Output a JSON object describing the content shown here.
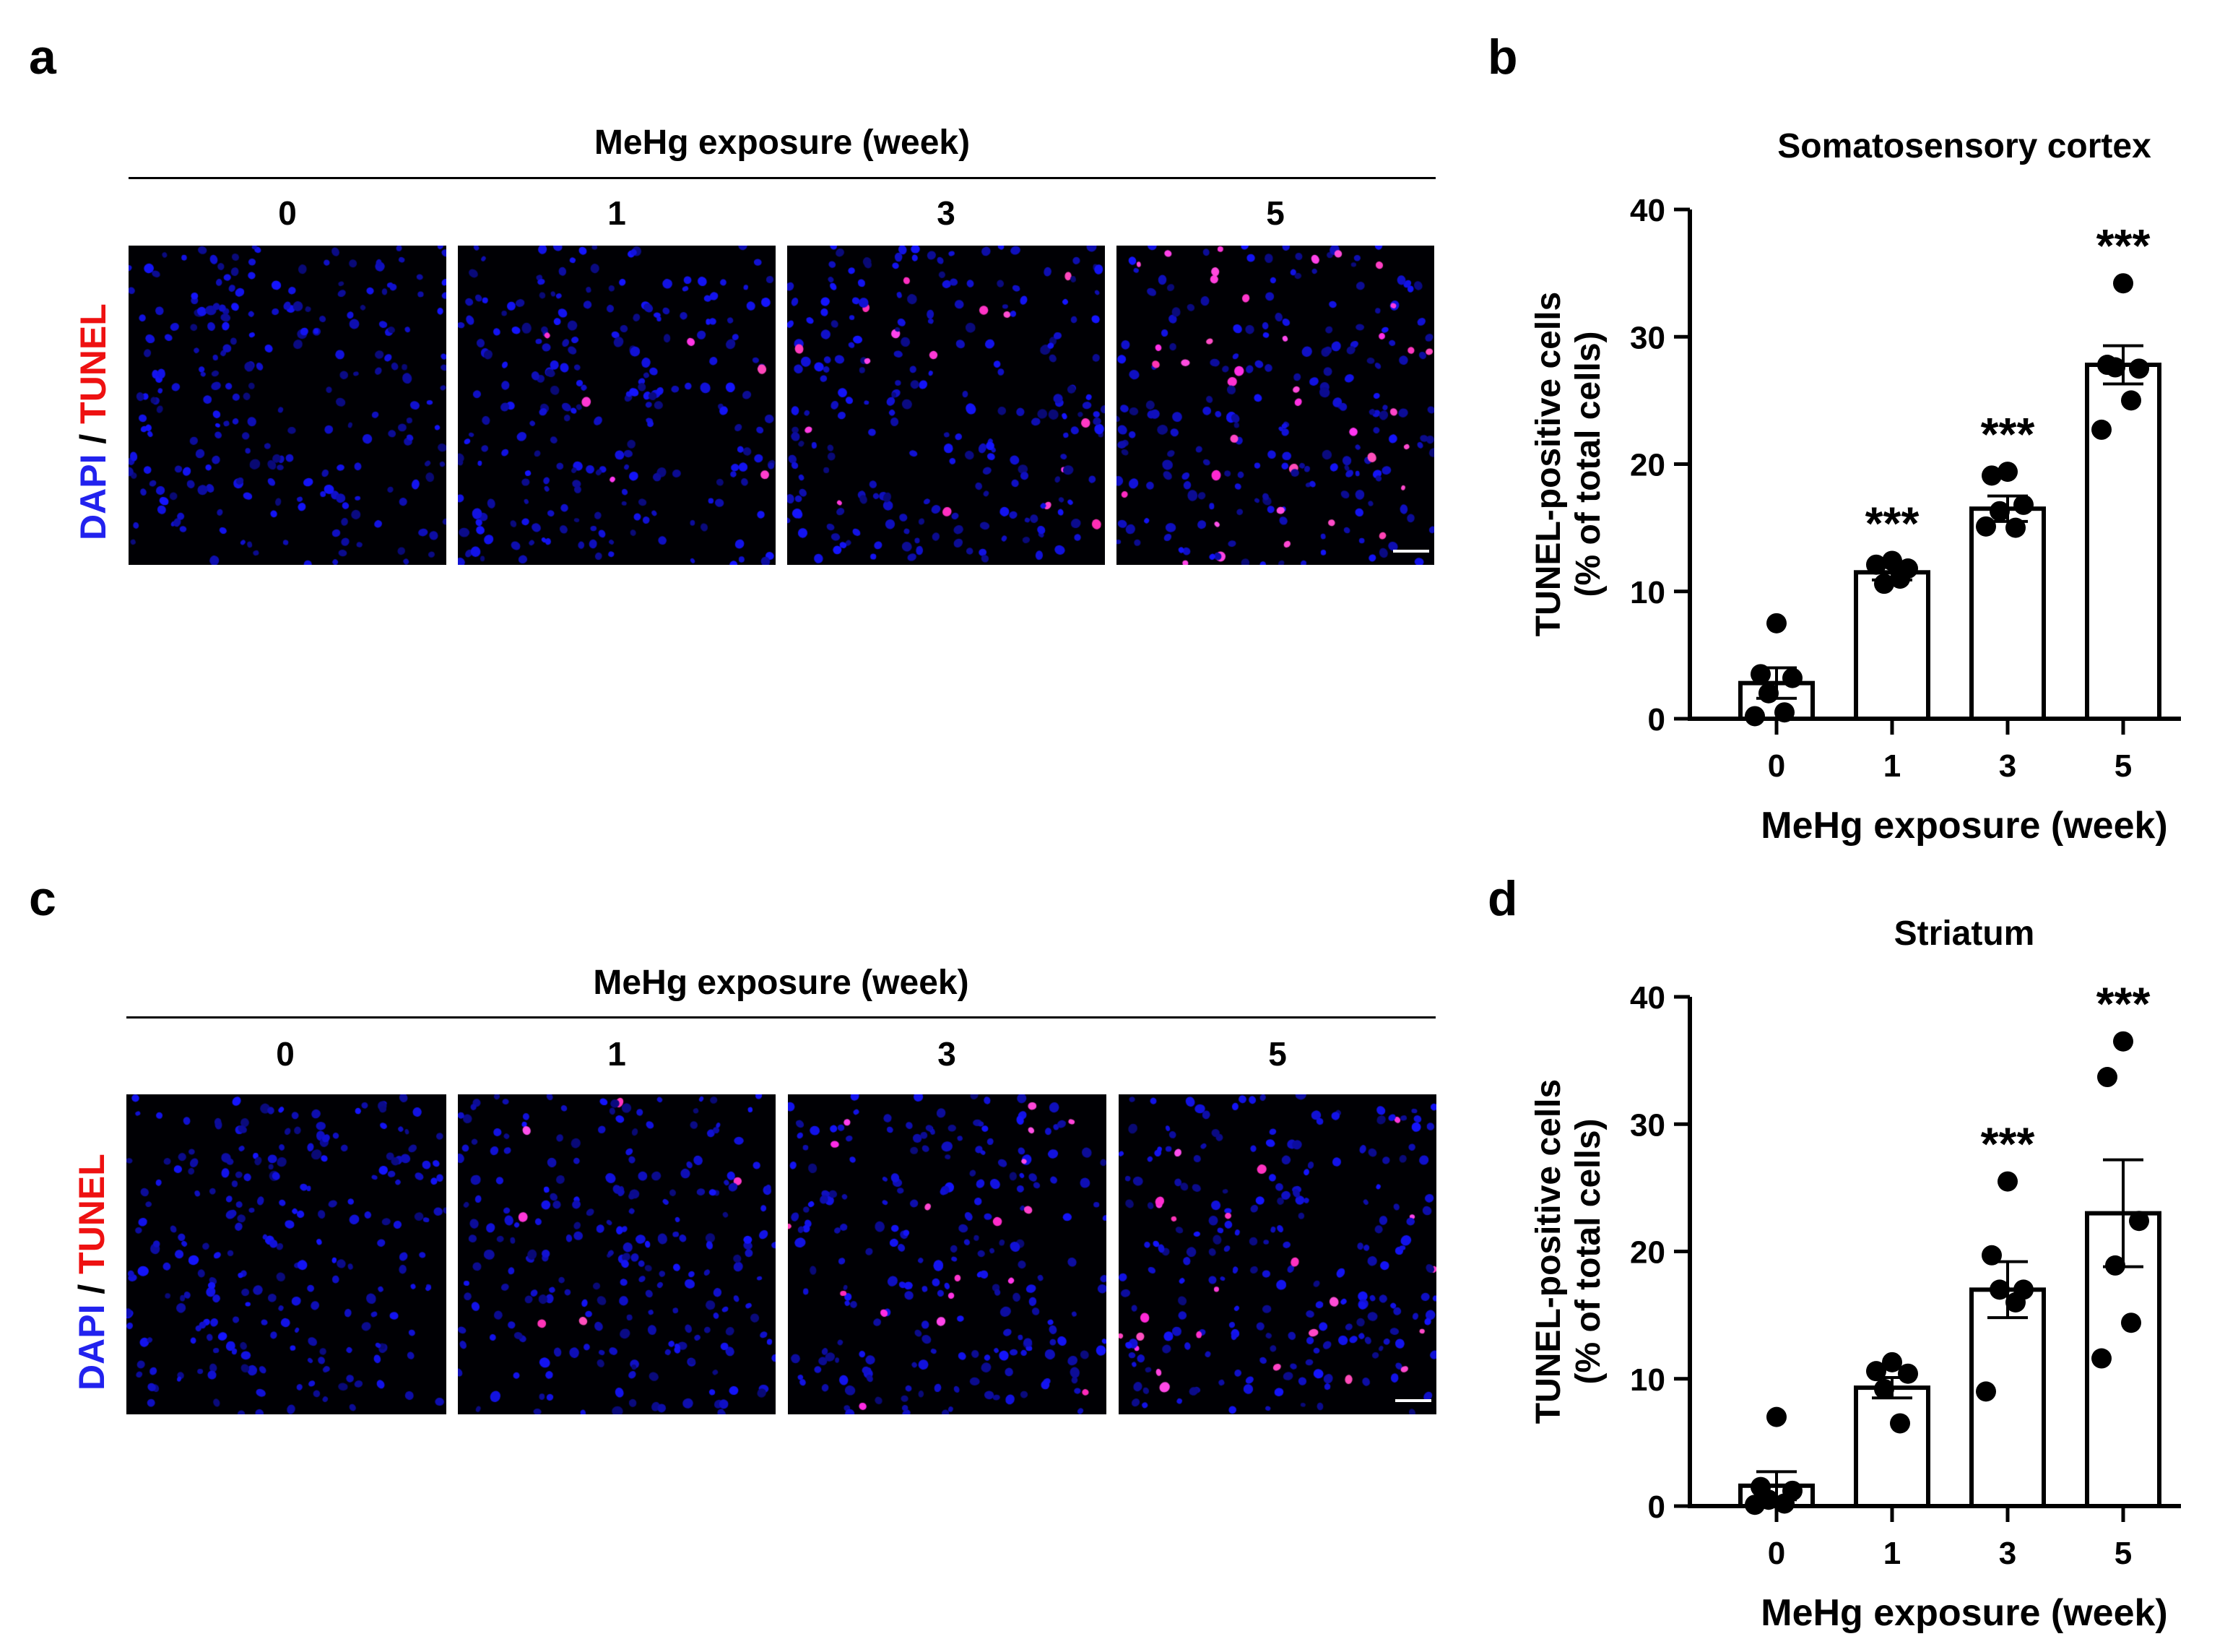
{
  "panels": {
    "a": "a",
    "b": "b",
    "c": "c",
    "d": "d"
  },
  "micro_top": {
    "title": "MeHg exposure (week)",
    "weeks": [
      "0",
      "1",
      "3",
      "5"
    ],
    "stain_dapi": "DAPI",
    "stain_sep": " / ",
    "stain_tunel": "TUNEL",
    "tunel_density": [
      0.0,
      0.03,
      0.09,
      0.12
    ]
  },
  "micro_bottom": {
    "title": "MeHg exposure (week)",
    "weeks": [
      "0",
      "1",
      "3",
      "5"
    ],
    "stain_dapi": "DAPI",
    "stain_sep": " / ",
    "stain_tunel": "TUNEL",
    "tunel_density": [
      0.0,
      0.02,
      0.09,
      0.11
    ]
  },
  "colors": {
    "dapi": "#2222ee",
    "tunel": "#ee1111",
    "tunel_spot": "#ff33cc",
    "nucleus": "#1a1aff"
  },
  "chart_data": [
    {
      "type": "bar",
      "title": "Somatosensory cortex",
      "xlabel": "MeHg exposure (week)",
      "ylabel_line1": "TUNEL-positive cells",
      "ylabel_line2": "(% of total cells)",
      "categories": [
        "0",
        "1",
        "3",
        "5"
      ],
      "values": [
        2.8,
        11.5,
        16.5,
        27.8
      ],
      "sem": [
        1.2,
        0.6,
        1.0,
        1.5
      ],
      "points": [
        [
          7.5,
          3.5,
          3.2,
          2.0,
          0.5,
          0.2
        ],
        [
          12.4,
          12.1,
          11.8,
          10.6,
          11.0
        ],
        [
          19.4,
          19.1,
          16.8,
          16.3,
          15.0,
          15.1
        ],
        [
          34.2,
          27.8,
          27.5,
          27.6,
          25.0,
          22.7
        ]
      ],
      "significance": [
        "",
        "***",
        "***",
        "***"
      ],
      "ylim": [
        0,
        40
      ],
      "yticks": [
        "0",
        "10",
        "20",
        "30",
        "40"
      ]
    },
    {
      "type": "bar",
      "title": "Striatum",
      "xlabel": "MeHg exposure (week)",
      "ylabel_line1": "TUNEL-positive cells",
      "ylabel_line2": "(% of total cells)",
      "categories": [
        "0",
        "1",
        "3",
        "5"
      ],
      "values": [
        1.6,
        9.3,
        17.0,
        23.0
      ],
      "sem": [
        1.1,
        0.8,
        2.2,
        4.2
      ],
      "points": [
        [
          7.0,
          1.5,
          1.2,
          0.5,
          0.2,
          0.1
        ],
        [
          11.3,
          10.6,
          10.4,
          9.2,
          6.5
        ],
        [
          25.5,
          19.7,
          17.0,
          17.0,
          16.0,
          9.0
        ],
        [
          36.5,
          33.7,
          22.4,
          18.9,
          14.4,
          11.6
        ]
      ],
      "significance": [
        "",
        "",
        "***",
        "***"
      ],
      "ylim": [
        0,
        40
      ],
      "yticks": [
        "0",
        "10",
        "20",
        "30",
        "40"
      ]
    }
  ]
}
